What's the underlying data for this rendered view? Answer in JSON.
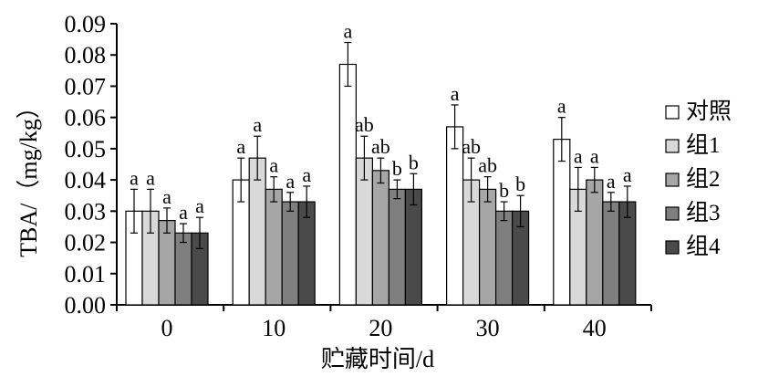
{
  "chart_data": {
    "type": "bar",
    "title": "",
    "xlabel": "贮藏时间/d",
    "ylabel": "TBA/（mg/kg）",
    "ylim": [
      0,
      0.09
    ],
    "yticks": [
      "0.00",
      "0.01",
      "0.02",
      "0.03",
      "0.04",
      "0.05",
      "0.06",
      "0.07",
      "0.08",
      "0.09"
    ],
    "categories": [
      "0",
      "10",
      "20",
      "30",
      "40"
    ],
    "legend_position": "right",
    "grid": false,
    "series": [
      {
        "name": "对照",
        "color": "#ffffff",
        "values": [
          0.03,
          0.04,
          0.077,
          0.057,
          0.053
        ],
        "errors": [
          0.007,
          0.007,
          0.007,
          0.007,
          0.007
        ],
        "labels": [
          "a",
          "a",
          "a",
          "a",
          "a"
        ]
      },
      {
        "name": "组1",
        "color": "#d9d9d9",
        "values": [
          0.03,
          0.047,
          0.047,
          0.04,
          0.037
        ],
        "errors": [
          0.007,
          0.007,
          0.007,
          0.007,
          0.007
        ],
        "labels": [
          "a",
          "a",
          "ab",
          "ab",
          "a"
        ]
      },
      {
        "name": "组2",
        "color": "#a6a6a6",
        "values": [
          0.027,
          0.037,
          0.043,
          0.037,
          0.04
        ],
        "errors": [
          0.004,
          0.004,
          0.004,
          0.004,
          0.004
        ],
        "labels": [
          "a",
          "a",
          "ab",
          "ab",
          "a"
        ]
      },
      {
        "name": "组3",
        "color": "#7f7f7f",
        "values": [
          0.023,
          0.033,
          0.037,
          0.03,
          0.033
        ],
        "errors": [
          0.003,
          0.003,
          0.003,
          0.003,
          0.003
        ],
        "labels": [
          "a",
          "a",
          "b",
          "b",
          "a"
        ]
      },
      {
        "name": "组4",
        "color": "#4a4a4a",
        "values": [
          0.023,
          0.033,
          0.037,
          0.03,
          0.033
        ],
        "errors": [
          0.005,
          0.005,
          0.005,
          0.005,
          0.005
        ],
        "labels": [
          "a",
          "a",
          "b",
          "b",
          "a"
        ]
      }
    ]
  }
}
